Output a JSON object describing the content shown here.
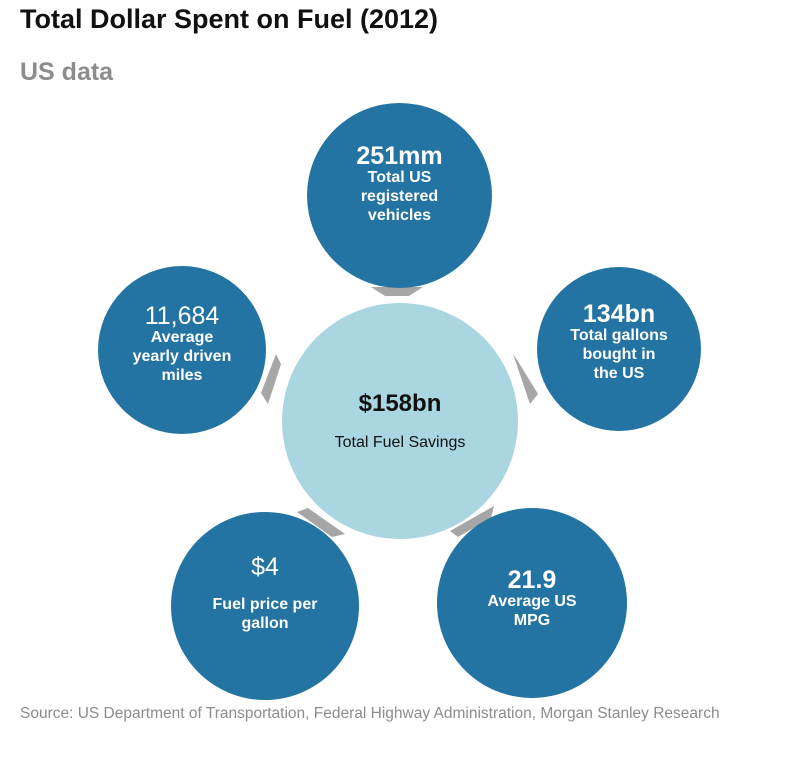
{
  "title": "Total Dollar Spent on Fuel (2012)",
  "subtitle": "US data",
  "center": {
    "value": "$158bn",
    "label": "Total Fuel Savings"
  },
  "nodes": {
    "vehicles": {
      "value": "251mm",
      "label": "Total US\nregistered\nvehicles"
    },
    "gallons": {
      "value": "134bn",
      "label": "Total gallons\nbought in\nthe US"
    },
    "mpg": {
      "value": "21.9",
      "label": "Average US\nMPG"
    },
    "price": {
      "value": "$4",
      "label": "Fuel price per\ngallon"
    },
    "miles": {
      "value": "11,684",
      "label": "Average\nyearly driven\nmiles"
    }
  },
  "colors": {
    "node": "#2374a3",
    "center": "#a9d6e1",
    "arrow": "#a6a6a6"
  },
  "source": "Source: US Department of Transportation, Federal Highway Administration, Morgan Stanley Research"
}
